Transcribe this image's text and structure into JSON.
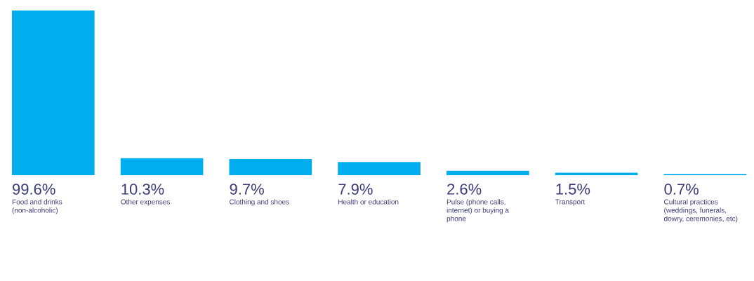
{
  "chart_data": {
    "type": "bar",
    "categories": [
      "Food and drinks (non-alcoholic)",
      "Other expenses",
      "Clothing and shoes",
      "Health or education",
      "Pulse (phone calls, internet) or buying a phone",
      "Transport",
      "Cultural practices (weddings, funerals, dowry, ceremonies, etc)"
    ],
    "values": [
      99.6,
      10.3,
      9.7,
      7.9,
      2.6,
      1.5,
      0.7
    ],
    "value_labels": [
      "99.6%",
      "10.3%",
      "9.7%",
      "7.9%",
      "2.6%",
      "1.5%",
      "0.7%"
    ],
    "color": "#00aeef"
  }
}
